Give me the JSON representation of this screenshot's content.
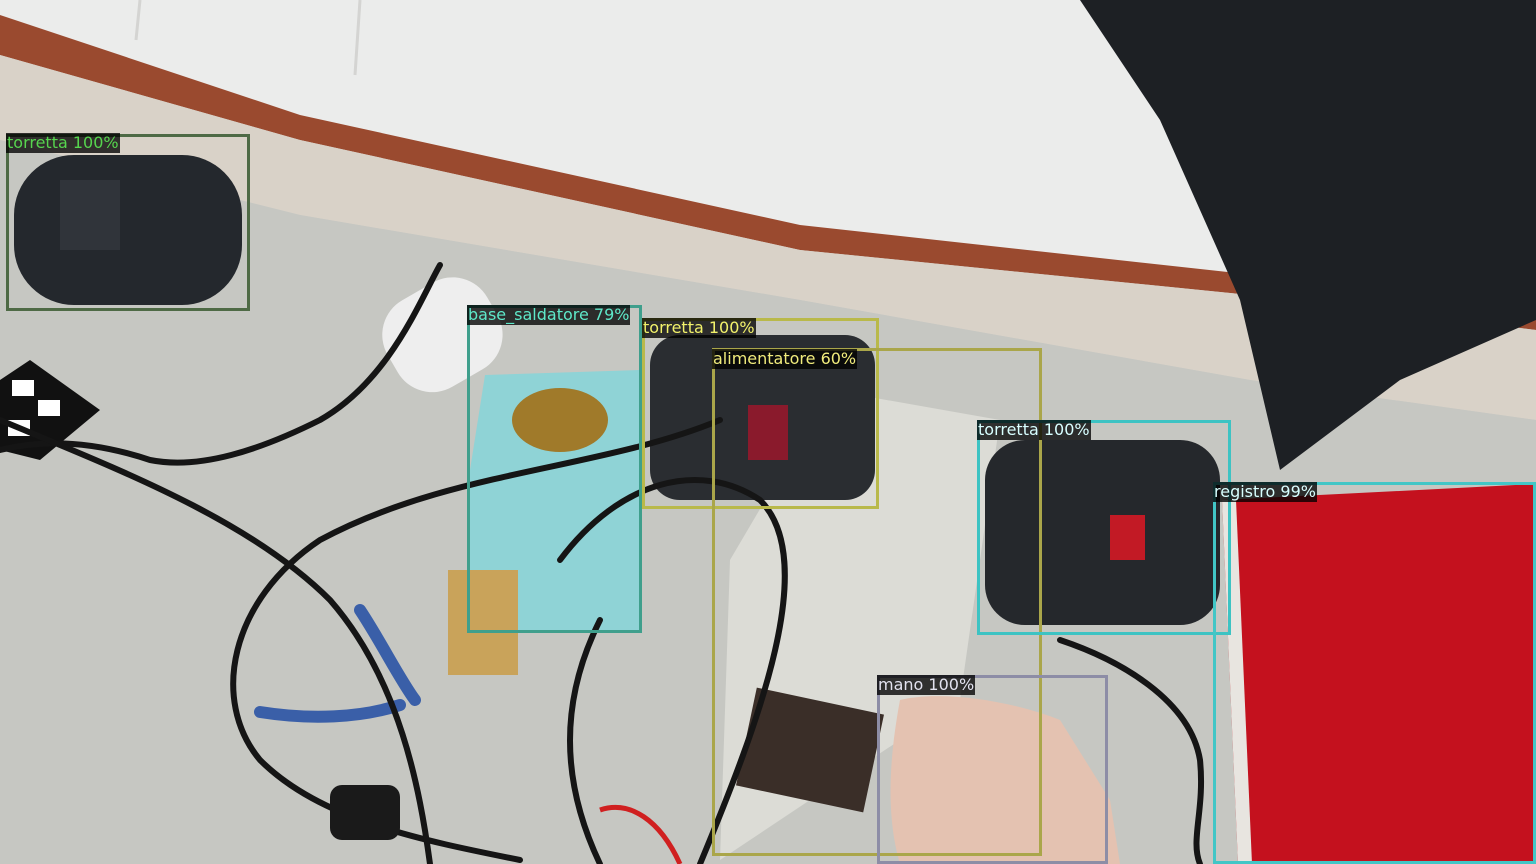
{
  "detections": [
    {
      "label": "torretta 100%",
      "color": "#4e6a45",
      "text_color": "#56d54e"
    },
    {
      "label": "base_saldatore 79%",
      "color": "#3f9f8c",
      "text_color": "#5ee8c9"
    },
    {
      "label": "torretta 100%",
      "color": "#b9b94a",
      "text_color": "#f2f26a"
    },
    {
      "label": "alimentatore 60%",
      "color": "#aaa64a",
      "text_color": "#f0eb7c"
    },
    {
      "label": "torretta 100%",
      "color": "#3dc3c3",
      "text_color": "#d8ffff"
    },
    {
      "label": "registro 99%",
      "color": "#42c6c6",
      "text_color": "#d8ffff"
    },
    {
      "label": "mano 100%",
      "color": "#8d8da6",
      "text_color": "#e2e2ef"
    }
  ]
}
